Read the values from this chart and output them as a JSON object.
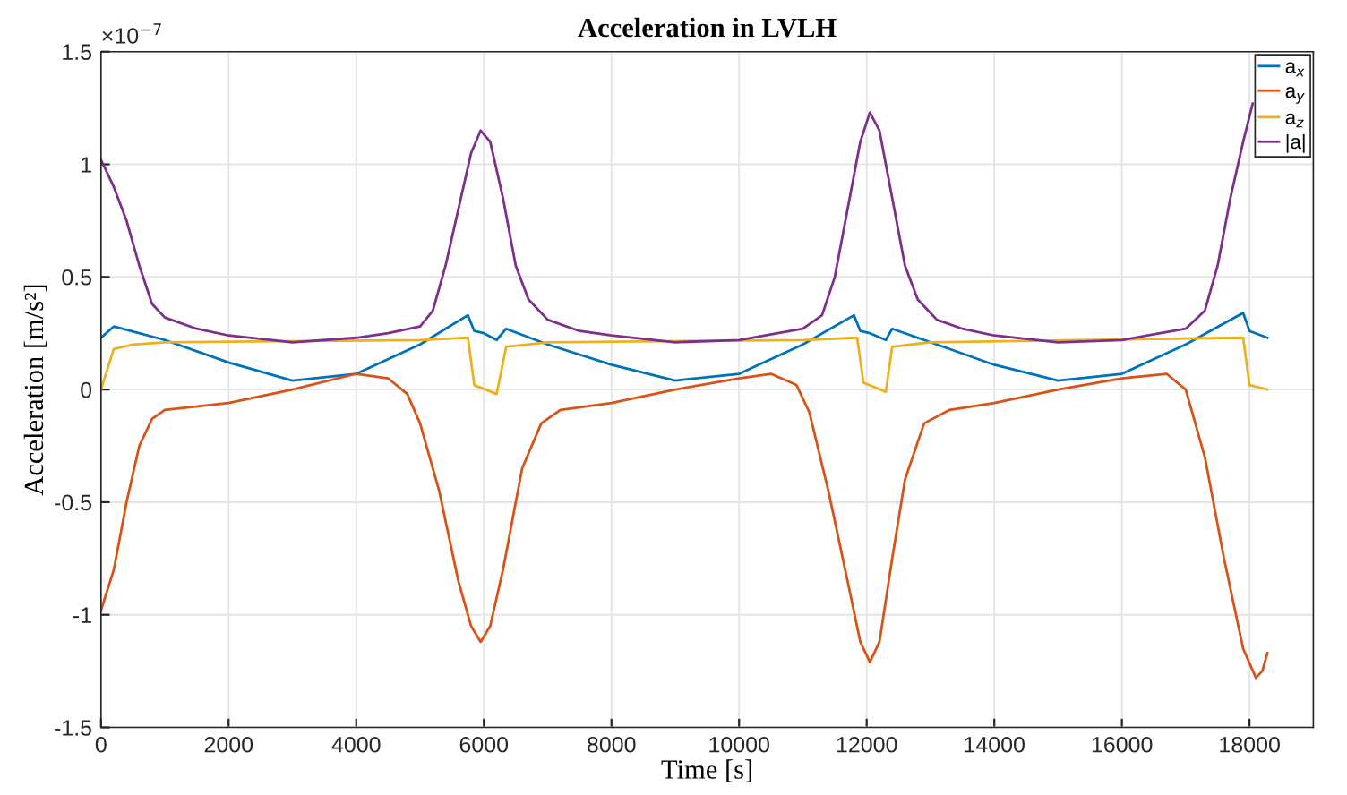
{
  "chart_data": {
    "type": "line",
    "title": "Acceleration in LVLH",
    "xlabel": "Time [s]",
    "ylabel": "Acceleration [m/s²]",
    "annotations": [
      "×10$^{−7}$"
    ],
    "xlim": [
      0,
      19000
    ],
    "xticks": [
      0,
      2000,
      4000,
      6000,
      8000,
      10000,
      12000,
      14000,
      16000,
      18000
    ],
    "ylim": [
      -1.5,
      1.5
    ],
    "yticks": [
      -1.5,
      -1,
      -0.5,
      0,
      0.5,
      1,
      1.5
    ],
    "grid": true,
    "legend": "top right",
    "series": [
      {
        "name": "a$_{x}$",
        "color": "#0072bd",
        "x": [
          0,
          200,
          1000,
          2000,
          3000,
          4000,
          5000,
          5750,
          5850,
          6000,
          6200,
          6350,
          7000,
          8000,
          9000,
          10000,
          11000,
          11800,
          11900,
          12050,
          12300,
          12400,
          13000,
          14000,
          15000,
          16000,
          17000,
          17900,
          18000,
          18280
        ],
        "values": [
          0.23,
          0.28,
          0.22,
          0.12,
          0.04,
          0.07,
          0.2,
          0.33,
          0.26,
          0.25,
          0.22,
          0.27,
          0.2,
          0.11,
          0.04,
          0.07,
          0.2,
          0.33,
          0.26,
          0.25,
          0.22,
          0.27,
          0.21,
          0.11,
          0.04,
          0.07,
          0.2,
          0.34,
          0.26,
          0.23
        ]
      },
      {
        "name": "a$_{y}$",
        "color": "#d95319",
        "x": [
          0,
          200,
          400,
          600,
          800,
          1000,
          2000,
          3000,
          4000,
          4500,
          4800,
          5000,
          5300,
          5600,
          5800,
          5950,
          6100,
          6300,
          6600,
          6900,
          7200,
          8000,
          9000,
          10000,
          10500,
          10900,
          11100,
          11400,
          11700,
          11900,
          12050,
          12200,
          12400,
          12600,
          12900,
          13300,
          14000,
          15000,
          16000,
          16700,
          17000,
          17300,
          17600,
          17900,
          18100,
          18200,
          18280
        ],
        "values": [
          -0.98,
          -0.8,
          -0.5,
          -0.25,
          -0.13,
          -0.09,
          -0.06,
          0.0,
          0.07,
          0.05,
          -0.02,
          -0.15,
          -0.45,
          -0.85,
          -1.05,
          -1.12,
          -1.05,
          -0.8,
          -0.35,
          -0.15,
          -0.09,
          -0.06,
          0.0,
          0.05,
          0.07,
          0.02,
          -0.1,
          -0.45,
          -0.85,
          -1.12,
          -1.21,
          -1.12,
          -0.75,
          -0.4,
          -0.15,
          -0.09,
          -0.06,
          0.0,
          0.05,
          0.07,
          0.0,
          -0.3,
          -0.75,
          -1.15,
          -1.28,
          -1.25,
          -1.17
        ]
      },
      {
        "name": "a$_{z}$",
        "color": "#edb120",
        "x": [
          0,
          200,
          500,
          1000,
          5000,
          5750,
          5850,
          6200,
          6350,
          7000,
          11000,
          11850,
          11950,
          12300,
          12400,
          13000,
          17900,
          18000,
          18280
        ],
        "values": [
          0.0,
          0.18,
          0.2,
          0.21,
          0.22,
          0.23,
          0.02,
          -0.02,
          0.19,
          0.21,
          0.22,
          0.23,
          0.03,
          -0.01,
          0.19,
          0.21,
          0.23,
          0.02,
          0.0
        ]
      },
      {
        "name": "|a|",
        "color": "#7e2f8e",
        "x": [
          0,
          200,
          400,
          600,
          800,
          1000,
          1500,
          2000,
          3000,
          4000,
          4500,
          5000,
          5200,
          5400,
          5600,
          5800,
          5950,
          6100,
          6300,
          6500,
          6700,
          7000,
          7500,
          8000,
          9000,
          10000,
          11000,
          11300,
          11500,
          11700,
          11900,
          12050,
          12200,
          12400,
          12600,
          12800,
          13100,
          13500,
          14000,
          15000,
          16000,
          17000,
          17300,
          17500,
          17700,
          17900,
          18050
        ],
        "values": [
          1.02,
          0.9,
          0.75,
          0.55,
          0.38,
          0.32,
          0.27,
          0.24,
          0.21,
          0.23,
          0.25,
          0.28,
          0.35,
          0.55,
          0.8,
          1.05,
          1.15,
          1.1,
          0.85,
          0.55,
          0.4,
          0.31,
          0.26,
          0.24,
          0.21,
          0.22,
          0.27,
          0.33,
          0.5,
          0.8,
          1.1,
          1.23,
          1.15,
          0.85,
          0.55,
          0.4,
          0.31,
          0.27,
          0.24,
          0.21,
          0.22,
          0.27,
          0.35,
          0.55,
          0.85,
          1.1,
          1.27
        ]
      }
    ]
  }
}
